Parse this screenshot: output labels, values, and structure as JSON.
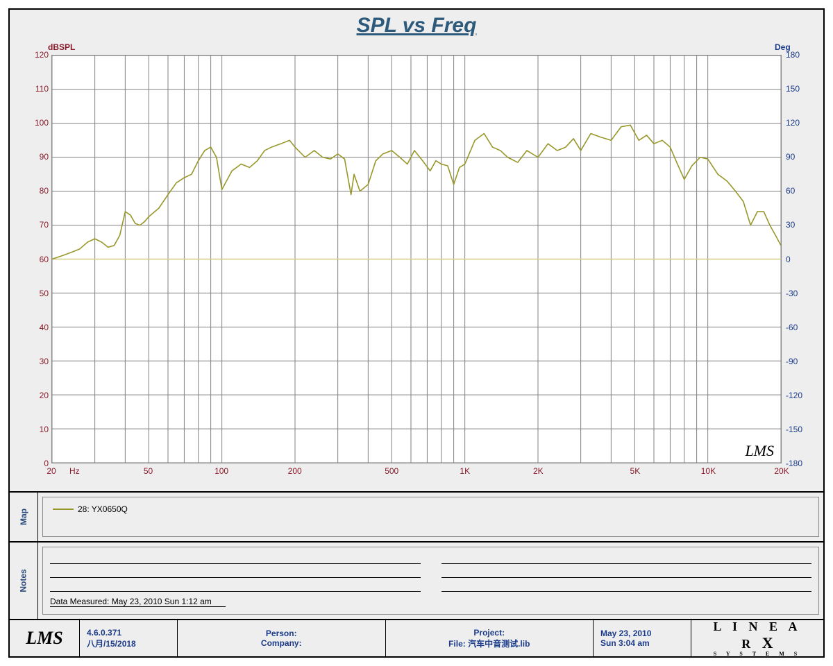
{
  "title": {
    "text": "SPL vs Freq",
    "color": "#2d5a7a",
    "fontsize": 30
  },
  "page_bg": "#eeeeee",
  "plot_bg": "#ffffff",
  "grid_color": "#808080",
  "baseline_color": "#d0d080",
  "chart": {
    "type": "line",
    "x_axis": {
      "scale": "log",
      "min": 20,
      "max": 20000,
      "ticks": [
        20,
        30,
        40,
        50,
        60,
        70,
        80,
        90,
        100,
        200,
        300,
        400,
        500,
        600,
        700,
        800,
        900,
        1000,
        2000,
        3000,
        4000,
        5000,
        6000,
        7000,
        8000,
        9000,
        10000,
        20000
      ],
      "labeled_ticks": {
        "20": "20",
        "50": "50",
        "100": "100",
        "200": "200",
        "500": "500",
        "1000": "1K",
        "2000": "2K",
        "5000": "5K",
        "10000": "10K",
        "20000": "20K"
      },
      "unit_label": "Hz",
      "label_color": "#8a1a2a",
      "label_fontsize": 12
    },
    "y_left": {
      "label": "dBSPL",
      "min": 0,
      "max": 120,
      "step": 10,
      "ticks": [
        0,
        10,
        20,
        30,
        40,
        50,
        60,
        70,
        80,
        90,
        100,
        110,
        120
      ],
      "color": "#8a1a2a",
      "label_fontsize": 12
    },
    "y_right": {
      "label": "Deg",
      "min": -180,
      "max": 180,
      "step": 30,
      "ticks": [
        -180,
        -150,
        -120,
        -90,
        -60,
        -30,
        0,
        30,
        60,
        90,
        120,
        150,
        180
      ],
      "color": "#1a3a8a",
      "label_fontsize": 12
    },
    "baseline_y_left": 60,
    "series": [
      {
        "name": "28: YX0650Q",
        "color": "#97972a",
        "line_width": 1.6,
        "points": [
          [
            20,
            60
          ],
          [
            22,
            61
          ],
          [
            24,
            62
          ],
          [
            26,
            63
          ],
          [
            28,
            65
          ],
          [
            30,
            66
          ],
          [
            32,
            65
          ],
          [
            34,
            63.5
          ],
          [
            36,
            64
          ],
          [
            38,
            67
          ],
          [
            40,
            74
          ],
          [
            42,
            73
          ],
          [
            44,
            70.5
          ],
          [
            46,
            70
          ],
          [
            48,
            71
          ],
          [
            50,
            72.5
          ],
          [
            55,
            75
          ],
          [
            60,
            79
          ],
          [
            65,
            82.5
          ],
          [
            70,
            84
          ],
          [
            75,
            85
          ],
          [
            80,
            89
          ],
          [
            85,
            92
          ],
          [
            90,
            93
          ],
          [
            95,
            90
          ],
          [
            100,
            80.5
          ],
          [
            110,
            86
          ],
          [
            120,
            88
          ],
          [
            130,
            87
          ],
          [
            140,
            89
          ],
          [
            150,
            92
          ],
          [
            160,
            93
          ],
          [
            175,
            94
          ],
          [
            190,
            95
          ],
          [
            200,
            93
          ],
          [
            220,
            90
          ],
          [
            240,
            92
          ],
          [
            260,
            90
          ],
          [
            280,
            89.5
          ],
          [
            300,
            91
          ],
          [
            320,
            89.5
          ],
          [
            340,
            79
          ],
          [
            350,
            85
          ],
          [
            370,
            80
          ],
          [
            400,
            82
          ],
          [
            430,
            89
          ],
          [
            460,
            91
          ],
          [
            500,
            92
          ],
          [
            540,
            90
          ],
          [
            580,
            88
          ],
          [
            620,
            92
          ],
          [
            670,
            89
          ],
          [
            720,
            86
          ],
          [
            760,
            89
          ],
          [
            800,
            88
          ],
          [
            850,
            87.5
          ],
          [
            900,
            82
          ],
          [
            950,
            87
          ],
          [
            1000,
            88
          ],
          [
            1100,
            95
          ],
          [
            1200,
            97
          ],
          [
            1300,
            93
          ],
          [
            1400,
            92
          ],
          [
            1500,
            90
          ],
          [
            1650,
            88.5
          ],
          [
            1800,
            92
          ],
          [
            2000,
            90
          ],
          [
            2200,
            94
          ],
          [
            2400,
            92
          ],
          [
            2600,
            93
          ],
          [
            2800,
            95.5
          ],
          [
            3000,
            92
          ],
          [
            3300,
            97
          ],
          [
            3600,
            96
          ],
          [
            4000,
            95
          ],
          [
            4400,
            99
          ],
          [
            4800,
            99.5
          ],
          [
            5200,
            95
          ],
          [
            5600,
            96.5
          ],
          [
            6000,
            94
          ],
          [
            6500,
            95
          ],
          [
            7000,
            93
          ],
          [
            7500,
            88
          ],
          [
            8000,
            83.5
          ],
          [
            8600,
            87.5
          ],
          [
            9300,
            90
          ],
          [
            10000,
            89.5
          ],
          [
            11000,
            85
          ],
          [
            12000,
            83
          ],
          [
            13000,
            80
          ],
          [
            14000,
            77
          ],
          [
            15000,
            70
          ],
          [
            16000,
            74
          ],
          [
            17000,
            74
          ],
          [
            18000,
            70
          ],
          [
            19000,
            67
          ],
          [
            20000,
            64
          ]
        ]
      }
    ]
  },
  "legend": {
    "tab": "Map",
    "items": [
      {
        "label": "28: YX0650Q",
        "color": "#97972a"
      }
    ]
  },
  "notes": {
    "tab": "Notes",
    "data_measured": "Data Measured: May 23, 2010  Sun  1:12 am"
  },
  "footer": {
    "lms": "LMS",
    "version": "4.6.0.371",
    "print_date": "八月/15/2018",
    "person_label": "Person:",
    "company_label": "Company:",
    "project_label": "Project:",
    "file_label": "File: 汽车中音测试.lib",
    "date1": "May 23, 2010",
    "date2": "Sun  3:04 am",
    "brand_top": "L I N E A R",
    "brand_x": "X",
    "brand_sub": "S Y S T E M S"
  },
  "watermark": "LMS"
}
